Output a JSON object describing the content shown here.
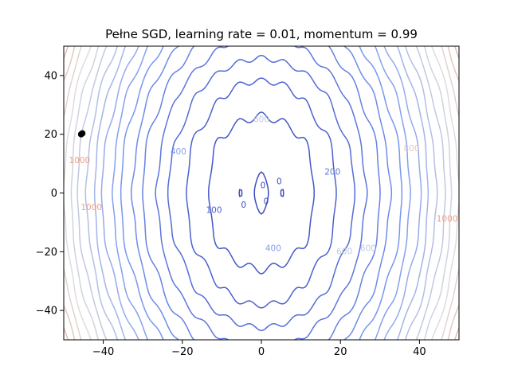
{
  "chart_data": {
    "type": "contour",
    "title": "Pełne SGD, learning rate = 0.01, momentum = 0.99",
    "xlabel": "",
    "ylabel": "",
    "xlim": [
      -50,
      50
    ],
    "ylim": [
      -50,
      50
    ],
    "x_ticks": [
      -40,
      -20,
      0,
      20,
      40
    ],
    "y_ticks": [
      -40,
      -20,
      0,
      20,
      40
    ],
    "grid": false,
    "colormap": "coolwarm",
    "contour_level_labels": [
      {
        "text": "0",
        "x": 0.4,
        "y": 2.5
      },
      {
        "text": "0",
        "x": 4.5,
        "y": 3.8
      },
      {
        "text": "0",
        "x": 1.2,
        "y": -3
      },
      {
        "text": "0",
        "x": -4.5,
        "y": -4.2
      },
      {
        "text": "100",
        "x": -12,
        "y": -6
      },
      {
        "text": "200",
        "x": 18,
        "y": 7
      },
      {
        "text": "400",
        "x": -21,
        "y": 14
      },
      {
        "text": "400",
        "x": 3,
        "y": -19
      },
      {
        "text": "600",
        "x": 21,
        "y": -20
      },
      {
        "text": "600",
        "x": 27,
        "y": -19
      },
      {
        "text": "600",
        "x": 0,
        "y": 25
      },
      {
        "text": "800",
        "x": 38,
        "y": 15
      },
      {
        "text": "1000",
        "x": -46,
        "y": 11
      },
      {
        "text": "1000",
        "x": -43,
        "y": -5
      },
      {
        "text": "1000",
        "x": 47,
        "y": -9
      }
    ],
    "optimizer_points": [
      {
        "x": -45.3,
        "y": 20.3
      },
      {
        "x": -45.6,
        "y": 20.0
      }
    ],
    "colors": {
      "low": "#3b4cc0",
      "mid": "#dddddd",
      "high": "#b40426",
      "marker": "#000000"
    }
  }
}
